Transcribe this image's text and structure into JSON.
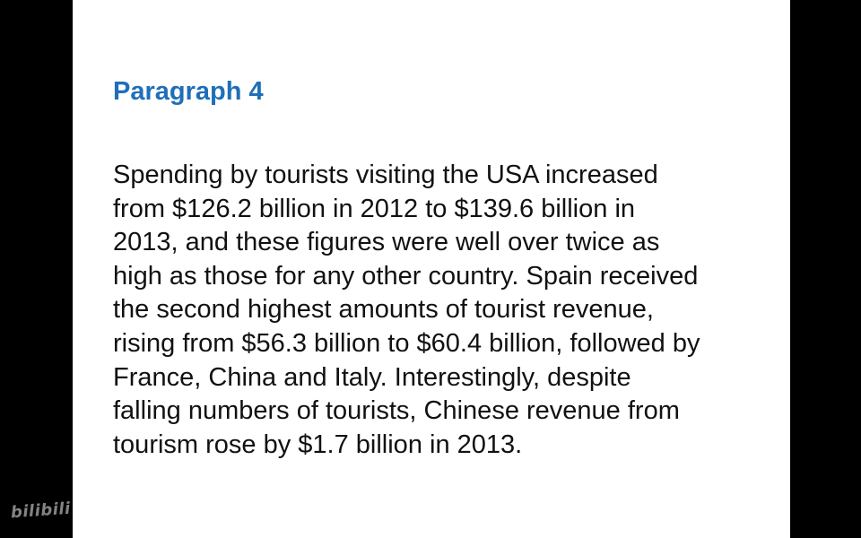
{
  "slide": {
    "title": "Paragraph 4",
    "lines": [
      "Spending by tourists visiting the USA increased",
      "from $126.2 billion in 2012 to $139.6 billion in",
      "2013, and these figures were well over twice as",
      "high as those for any other country. Spain received",
      "the second highest amounts of tourist revenue,",
      "rising from $56.3 billion to $60.4 billion, followed by",
      "France, China and Italy. Interestingly, despite",
      "falling numbers of tourists, Chinese revenue from",
      "tourism rose by $1.7 billion in 2013."
    ]
  },
  "watermark": {
    "label": "bilibili"
  },
  "colors": {
    "background": "#000000",
    "slide": "#ffffff",
    "title": "#1f6fb8",
    "text": "#111111"
  }
}
